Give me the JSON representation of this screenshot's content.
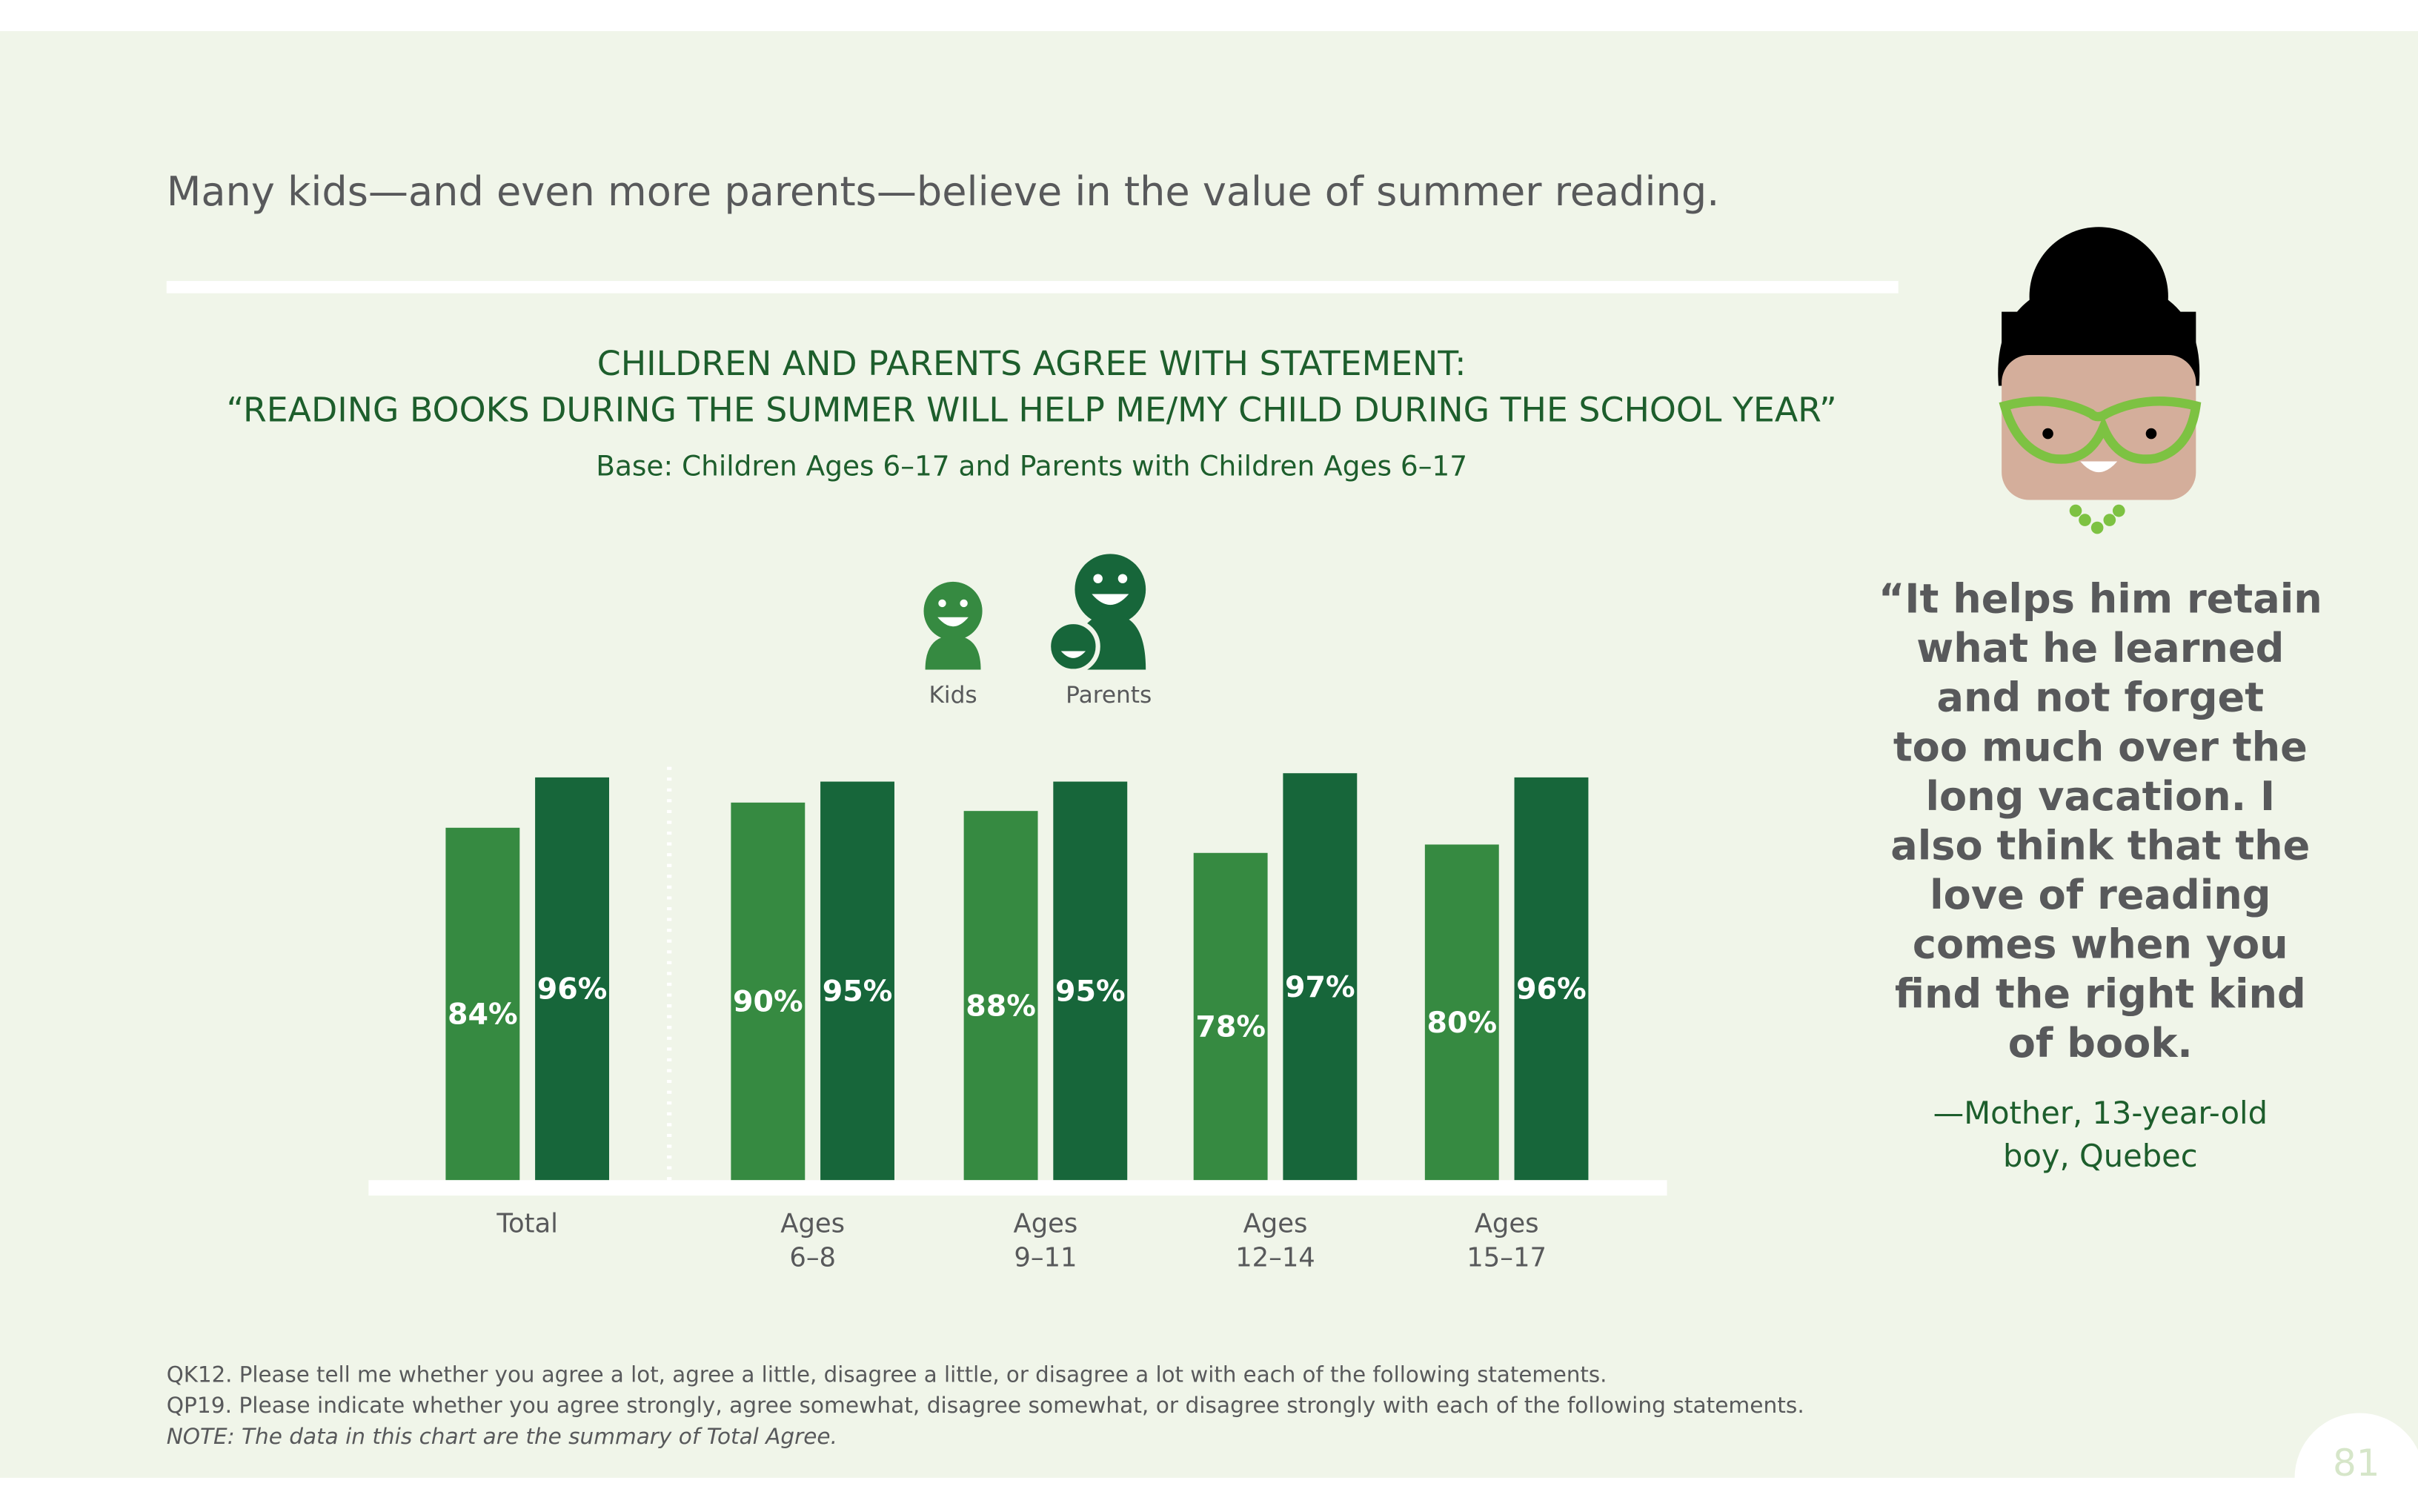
{
  "headline": "Many kids—and even more parents—believe in the value of summer reading.",
  "chart_data": {
    "type": "bar",
    "title": [
      "CHILDREN AND PARENTS AGREE WITH STATEMENT:",
      "“READING BOOKS DURING THE SUMMER WILL HELP ME/MY CHILD DURING THE SCHOOL YEAR”"
    ],
    "subtitle": "Base: Children Ages 6–17 and Parents with Children Ages 6–17",
    "categories": [
      [
        "Total"
      ],
      [
        "Ages",
        "6–8"
      ],
      [
        "Ages",
        "9–11"
      ],
      [
        "Ages",
        "12–14"
      ],
      [
        "Ages",
        "15–17"
      ]
    ],
    "series": [
      {
        "name": "Kids",
        "color": "#368a41",
        "values": [
          84,
          90,
          88,
          78,
          80
        ],
        "value_labels": [
          "84%",
          "90%",
          "88%",
          "78%",
          "80%"
        ]
      },
      {
        "name": "Parents",
        "color": "#17663a",
        "values": [
          96,
          95,
          95,
          97,
          96
        ],
        "value_labels": [
          "96%",
          "95%",
          "95%",
          "97%",
          "96%"
        ]
      }
    ],
    "ylim": [
      0,
      100
    ]
  },
  "quote": {
    "lines": [
      "“It helps him retain",
      "what he learned",
      "and not forget",
      "too much over the",
      "long vacation. I",
      "also think that the",
      "love of reading",
      "comes when you",
      "find the right kind",
      "of book."
    ],
    "attribution": [
      "—Mother, 13-year-old",
      "boy, Quebec"
    ]
  },
  "footnotes": [
    "QK12. Please tell me whether you agree a lot, agree a little, disagree a little, or disagree a lot with each of the following statements.",
    "QP19. Please indicate whether you agree strongly, agree somewhat, disagree somewhat, or disagree strongly with each of the following statements.",
    "NOTE: The data in this chart are the summary of Total Agree."
  ],
  "page_number": "81"
}
